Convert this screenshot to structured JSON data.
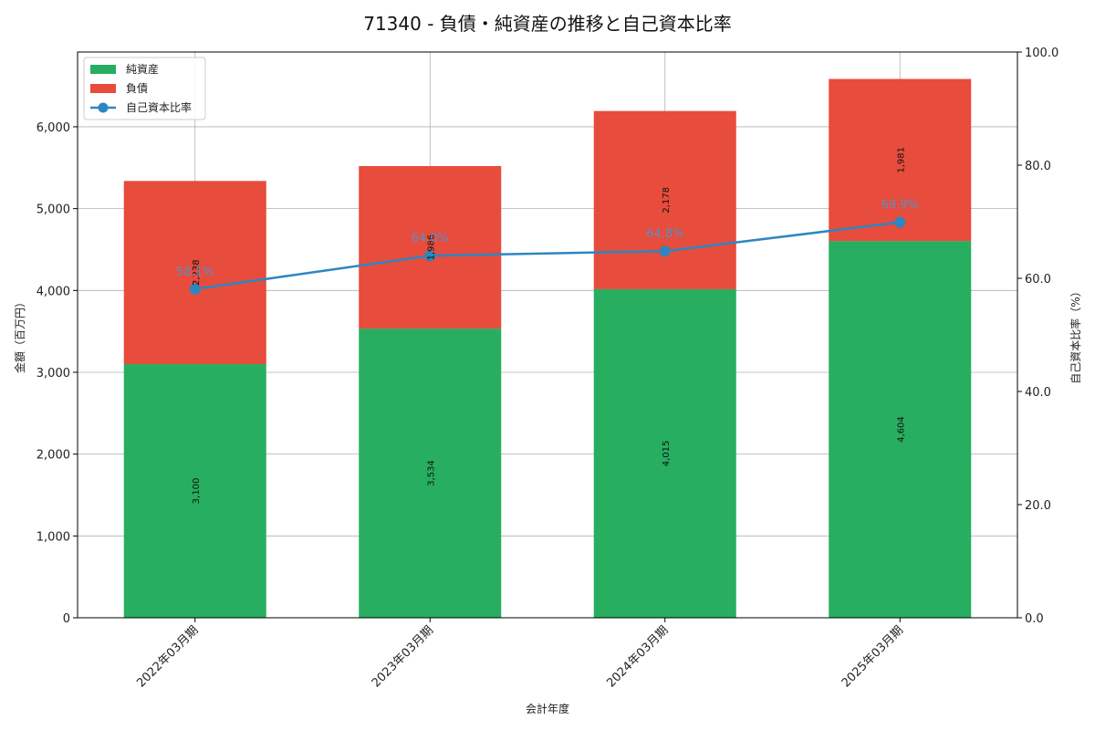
{
  "title": "71340 - 負債・純資産の推移と自己資本比率",
  "chart_data": {
    "type": "bar",
    "stacked": true,
    "title": "71340 - 負債・純資産の推移と自己資本比率",
    "xlabel": "会計年度",
    "ylabel": "金額（百万円）",
    "y2label": "自己資本比率（%）",
    "categories": [
      "2022年03月期",
      "2023年03月期",
      "2024年03月期",
      "2025年03月期"
    ],
    "series": [
      {
        "name": "純資産",
        "type": "bar",
        "color": "#27ae60",
        "values": [
          3100,
          3534,
          4015,
          4604
        ],
        "labels": [
          "3,100",
          "3,534",
          "4,015",
          "4,604"
        ]
      },
      {
        "name": "負債",
        "type": "bar",
        "color": "#e74c3c",
        "values": [
          2238,
          1986,
          2178,
          1981
        ],
        "labels": [
          "2,238",
          "1,986",
          "2,178",
          "1,981"
        ]
      },
      {
        "name": "自己資本比率",
        "type": "line",
        "axis": "right",
        "color": "#2e86c1",
        "values": [
          58.1,
          64.0,
          64.8,
          69.9
        ],
        "labels": [
          "58.1%",
          "64.0%",
          "64.8%",
          "69.9%"
        ]
      }
    ],
    "ylim": [
      0,
      6914
    ],
    "y2lim": [
      0,
      100
    ],
    "yticks": [
      "0",
      "1,000",
      "2,000",
      "3,000",
      "4,000",
      "5,000",
      "6,000"
    ],
    "y2ticks": [
      "0.0",
      "20.0",
      "40.0",
      "60.0",
      "80.0",
      "100.0"
    ],
    "grid": true,
    "legend_position": "upper left"
  },
  "legend": [
    {
      "label": "純資産",
      "kind": "patch",
      "color": "#27ae60"
    },
    {
      "label": "負債",
      "kind": "patch",
      "color": "#e74c3c"
    },
    {
      "label": "自己資本比率",
      "kind": "line",
      "color": "#2e86c1"
    }
  ]
}
